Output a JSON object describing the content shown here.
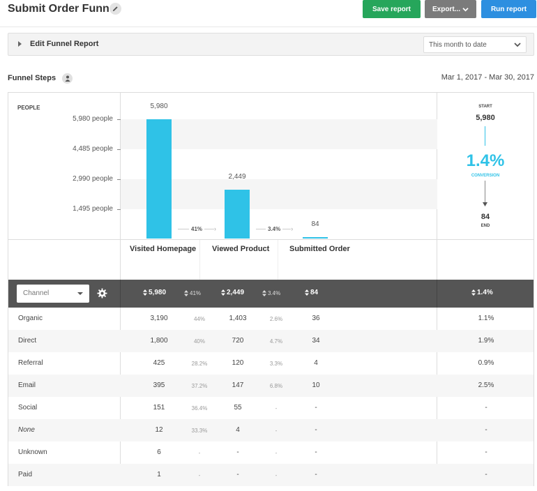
{
  "header": {
    "title": "Submit Order Funnel",
    "save_label": "Save report",
    "export_label": "Export...",
    "run_label": "Run report",
    "save_color": "#26a65b",
    "export_color": "#7b7b7b",
    "run_color": "#2d8fe0"
  },
  "edit_bar": {
    "label": "Edit Funnel Report",
    "date_select": "This month to date"
  },
  "funnel": {
    "section_title": "Funnel Steps",
    "date_range": "Mar 1, 2017 - Mar 30, 2017",
    "people_label": "PEOPLE",
    "y_ticks": [
      "5,980 people",
      "4,485 people",
      "2,990 people",
      "1,495 people"
    ],
    "steps": [
      {
        "name": "Visited Homepage",
        "value_label": "5,980",
        "value": 5980
      },
      {
        "name": "Viewed Product",
        "value_label": "2,449",
        "value": 2449
      },
      {
        "name": "Submitted Order",
        "value_label": "84",
        "value": 84
      }
    ],
    "step_conversions": [
      "41%",
      "3.4%"
    ],
    "accent_color": "#2fc2e7",
    "summary": {
      "start_label": "START",
      "start_value": "5,980",
      "conversion": "1.4%",
      "conversion_label": "CONVERSION",
      "end_value": "84",
      "end_label": "END"
    }
  },
  "table": {
    "channel_select": "Channel",
    "header": {
      "s1": "5,980",
      "p1": "41%",
      "s2": "2,449",
      "p2": "3.4%",
      "s3": "84",
      "rate": "1.4%"
    },
    "rows": [
      {
        "name": "Organic",
        "s1": "3,190",
        "p1": "44%",
        "s2": "1,403",
        "p2": "2.6%",
        "s3": "36",
        "rate": "1.1%"
      },
      {
        "name": "Direct",
        "s1": "1,800",
        "p1": "40%",
        "s2": "720",
        "p2": "4.7%",
        "s3": "34",
        "rate": "1.9%"
      },
      {
        "name": "Referral",
        "s1": "425",
        "p1": "28.2%",
        "s2": "120",
        "p2": "3.3%",
        "s3": "4",
        "rate": "0.9%"
      },
      {
        "name": "Email",
        "s1": "395",
        "p1": "37.2%",
        "s2": "147",
        "p2": "6.8%",
        "s3": "10",
        "rate": "2.5%"
      },
      {
        "name": "Social",
        "s1": "151",
        "p1": "36.4%",
        "s2": "55",
        "p2": "-",
        "s3": "-",
        "rate": "-"
      },
      {
        "name": "None",
        "s1": "12",
        "p1": "33.3%",
        "s2": "4",
        "p2": "-",
        "s3": "-",
        "rate": "-"
      },
      {
        "name": "Unknown",
        "s1": "6",
        "p1": "-",
        "s2": "-",
        "p2": "-",
        "s3": "-",
        "rate": "-"
      },
      {
        "name": "Paid",
        "s1": "1",
        "p1": "-",
        "s2": "-",
        "p2": "-",
        "s3": "-",
        "rate": "-"
      }
    ]
  }
}
